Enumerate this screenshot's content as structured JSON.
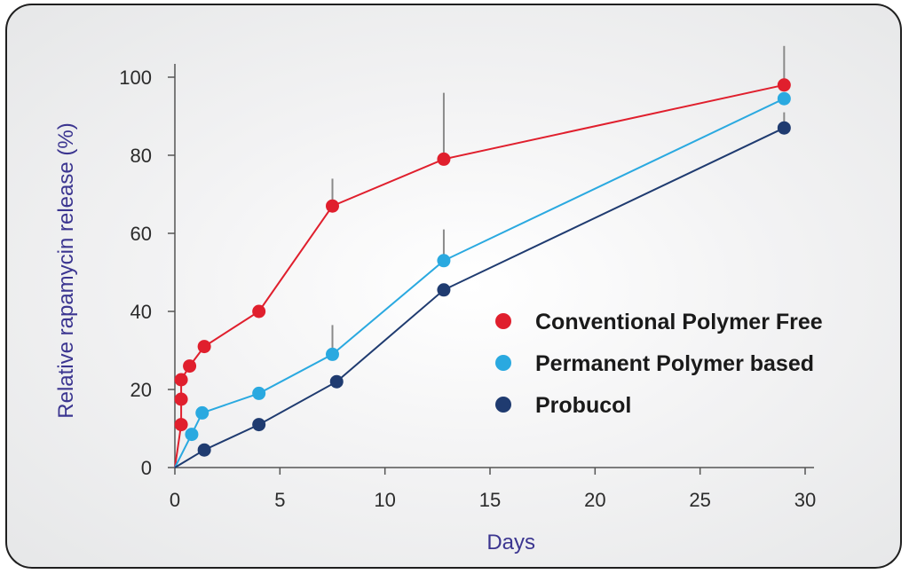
{
  "chart_data": {
    "type": "line",
    "xlabel": "Days",
    "ylabel": "Relative rapamycin release (%)",
    "xlim": [
      0,
      30
    ],
    "ylim": [
      0,
      100
    ],
    "xticks": [
      0,
      5,
      10,
      15,
      20,
      25,
      30
    ],
    "yticks": [
      0,
      20,
      40,
      60,
      80,
      100
    ],
    "grid": false,
    "legend_position": "center-right",
    "series": [
      {
        "name": "Conventional Polymer Free",
        "color": "#e01f2d",
        "points": [
          {
            "x": 0,
            "y": 0
          },
          {
            "x": 0.3,
            "y": 11
          },
          {
            "x": 0.3,
            "y": 17.5
          },
          {
            "x": 0.3,
            "y": 22.5
          },
          {
            "x": 0.7,
            "y": 26
          },
          {
            "x": 1.4,
            "y": 31
          },
          {
            "x": 4,
            "y": 40
          },
          {
            "x": 7.5,
            "y": 67,
            "err": 7
          },
          {
            "x": 12.8,
            "y": 79,
            "err": 17
          },
          {
            "x": 29,
            "y": 98,
            "err": 10
          }
        ]
      },
      {
        "name": "Permanent Polymer based",
        "color": "#2aa9e0",
        "points": [
          {
            "x": 0,
            "y": 0
          },
          {
            "x": 0.8,
            "y": 8.5
          },
          {
            "x": 1.3,
            "y": 14
          },
          {
            "x": 4,
            "y": 19
          },
          {
            "x": 7.5,
            "y": 29,
            "err": 7.5
          },
          {
            "x": 12.8,
            "y": 53,
            "err": 8
          },
          {
            "x": 29,
            "y": 94.5
          }
        ]
      },
      {
        "name": "Probucol",
        "color": "#1f3b70",
        "points": [
          {
            "x": 0,
            "y": 0
          },
          {
            "x": 1.4,
            "y": 4.5
          },
          {
            "x": 4,
            "y": 11
          },
          {
            "x": 7.7,
            "y": 22
          },
          {
            "x": 12.8,
            "y": 45.5
          },
          {
            "x": 29,
            "y": 87,
            "err": 4
          }
        ]
      }
    ]
  }
}
